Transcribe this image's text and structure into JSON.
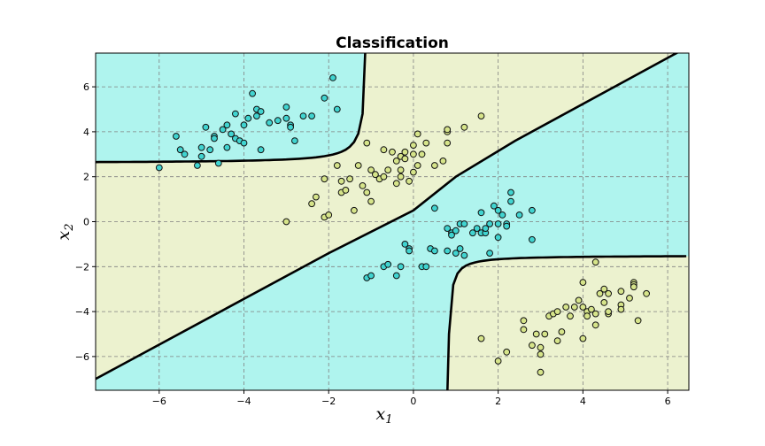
{
  "chart_data": {
    "type": "scatter",
    "title": "Classification",
    "xlabel": "x",
    "xlabel_sub": "1",
    "ylabel": "x",
    "ylabel_sub": "2",
    "xlim": [
      -7.5,
      6.5
    ],
    "ylim": [
      -7.5,
      7.5
    ],
    "xticks": [
      -6,
      -4,
      -2,
      0,
      2,
      4,
      6
    ],
    "yticks": [
      -6,
      -4,
      -2,
      0,
      2,
      4,
      6
    ],
    "grid": true,
    "colors": {
      "region_cyan": "#aff4ee",
      "region_yellow": "#ecf2cf",
      "point_cyan": "#40d4d0",
      "point_yellow": "#d6e48a",
      "edge": "#111111",
      "boundary": "#000000"
    },
    "series": [
      {
        "class": "cyan",
        "points": [
          [
            -6.0,
            2.4
          ],
          [
            -5.6,
            3.8
          ],
          [
            -5.5,
            3.2
          ],
          [
            -5.4,
            3.0
          ],
          [
            -5.1,
            2.5
          ],
          [
            -5.0,
            3.3
          ],
          [
            -5.0,
            2.9
          ],
          [
            -4.9,
            4.2
          ],
          [
            -4.8,
            3.2
          ],
          [
            -4.7,
            3.8
          ],
          [
            -4.7,
            3.7
          ],
          [
            -4.6,
            2.6
          ],
          [
            -4.5,
            4.1
          ],
          [
            -4.4,
            3.3
          ],
          [
            -4.4,
            4.3
          ],
          [
            -4.3,
            3.9
          ],
          [
            -4.2,
            4.8
          ],
          [
            -4.2,
            3.7
          ],
          [
            -4.1,
            3.6
          ],
          [
            -4.0,
            3.5
          ],
          [
            -4.0,
            4.3
          ],
          [
            -3.9,
            4.6
          ],
          [
            -3.8,
            5.7
          ],
          [
            -3.7,
            5.0
          ],
          [
            -3.7,
            4.7
          ],
          [
            -3.6,
            4.9
          ],
          [
            -3.6,
            3.2
          ],
          [
            -3.4,
            4.4
          ],
          [
            -3.2,
            4.5
          ],
          [
            -3.0,
            5.1
          ],
          [
            -3.0,
            4.6
          ],
          [
            -2.9,
            4.3
          ],
          [
            -2.9,
            4.2
          ],
          [
            -2.8,
            3.6
          ],
          [
            -2.6,
            4.7
          ],
          [
            -2.4,
            4.7
          ],
          [
            -2.1,
            5.5
          ],
          [
            -1.9,
            6.4
          ],
          [
            -1.8,
            5.0
          ],
          [
            -1.1,
            -2.5
          ],
          [
            -1.0,
            -2.4
          ],
          [
            -0.7,
            -2.0
          ],
          [
            -0.6,
            -1.9
          ],
          [
            -0.4,
            -2.4
          ],
          [
            -0.3,
            -2.0
          ],
          [
            -0.2,
            -1.0
          ],
          [
            -0.1,
            -1.2
          ],
          [
            -0.1,
            -1.3
          ],
          [
            0.2,
            -2.0
          ],
          [
            0.3,
            -2.0
          ],
          [
            0.4,
            -1.2
          ],
          [
            0.5,
            -1.3
          ],
          [
            0.5,
            0.6
          ],
          [
            0.8,
            -0.3
          ],
          [
            0.8,
            -1.3
          ],
          [
            0.9,
            -0.5
          ],
          [
            0.9,
            -0.6
          ],
          [
            1.0,
            -0.4
          ],
          [
            1.0,
            -1.4
          ],
          [
            1.1,
            -1.2
          ],
          [
            1.1,
            -0.1
          ],
          [
            1.2,
            -0.1
          ],
          [
            1.2,
            -1.5
          ],
          [
            1.4,
            -0.5
          ],
          [
            1.5,
            -0.3
          ],
          [
            1.6,
            0.4
          ],
          [
            1.6,
            -0.5
          ],
          [
            1.7,
            -0.5
          ],
          [
            1.7,
            -0.3
          ],
          [
            1.8,
            -1.4
          ],
          [
            1.8,
            -0.1
          ],
          [
            1.9,
            0.7
          ],
          [
            2.0,
            0.5
          ],
          [
            2.0,
            -0.7
          ],
          [
            2.0,
            -0.1
          ],
          [
            2.1,
            0.3
          ],
          [
            2.2,
            -0.1
          ],
          [
            2.2,
            -0.2
          ],
          [
            2.3,
            0.9
          ],
          [
            2.3,
            1.3
          ],
          [
            2.5,
            0.3
          ],
          [
            2.8,
            0.5
          ],
          [
            2.8,
            -0.8
          ]
        ]
      },
      {
        "class": "yellow",
        "points": [
          [
            -3.0,
            0.0
          ],
          [
            -2.4,
            0.8
          ],
          [
            -2.3,
            1.1
          ],
          [
            -2.1,
            0.2
          ],
          [
            -2.1,
            1.9
          ],
          [
            -2.0,
            0.3
          ],
          [
            -1.8,
            2.5
          ],
          [
            -1.7,
            1.8
          ],
          [
            -1.7,
            1.3
          ],
          [
            -1.6,
            1.4
          ],
          [
            -1.5,
            1.9
          ],
          [
            -1.4,
            0.5
          ],
          [
            -1.3,
            2.5
          ],
          [
            -1.2,
            1.6
          ],
          [
            -1.1,
            1.3
          ],
          [
            -1.1,
            3.5
          ],
          [
            -1.0,
            0.9
          ],
          [
            -1.0,
            2.3
          ],
          [
            -0.9,
            2.1
          ],
          [
            -0.8,
            1.9
          ],
          [
            -0.7,
            2.0
          ],
          [
            -0.7,
            3.2
          ],
          [
            -0.6,
            2.3
          ],
          [
            -0.5,
            3.1
          ],
          [
            -0.4,
            2.7
          ],
          [
            -0.4,
            1.7
          ],
          [
            -0.3,
            2.9
          ],
          [
            -0.3,
            2.3
          ],
          [
            -0.3,
            2.0
          ],
          [
            -0.2,
            2.8
          ],
          [
            -0.2,
            3.1
          ],
          [
            -0.1,
            1.8
          ],
          [
            0.0,
            2.2
          ],
          [
            0.0,
            3.0
          ],
          [
            0.0,
            3.4
          ],
          [
            0.1,
            2.5
          ],
          [
            0.1,
            3.9
          ],
          [
            0.2,
            3.0
          ],
          [
            0.3,
            3.5
          ],
          [
            0.5,
            2.5
          ],
          [
            0.7,
            2.7
          ],
          [
            0.8,
            3.5
          ],
          [
            0.8,
            4.0
          ],
          [
            0.8,
            4.1
          ],
          [
            1.2,
            4.2
          ],
          [
            1.6,
            4.7
          ],
          [
            1.6,
            -5.2
          ],
          [
            2.0,
            -6.2
          ],
          [
            2.2,
            -5.8
          ],
          [
            2.6,
            -4.4
          ],
          [
            2.6,
            -4.8
          ],
          [
            2.8,
            -5.5
          ],
          [
            2.9,
            -5.0
          ],
          [
            3.0,
            -5.6
          ],
          [
            3.0,
            -5.9
          ],
          [
            3.0,
            -6.7
          ],
          [
            3.1,
            -5.0
          ],
          [
            3.2,
            -4.2
          ],
          [
            3.3,
            -4.1
          ],
          [
            3.4,
            -5.3
          ],
          [
            3.4,
            -4.0
          ],
          [
            3.5,
            -4.9
          ],
          [
            3.6,
            -3.8
          ],
          [
            3.7,
            -4.2
          ],
          [
            3.8,
            -3.8
          ],
          [
            3.9,
            -3.5
          ],
          [
            4.0,
            -2.7
          ],
          [
            4.0,
            -3.8
          ],
          [
            4.0,
            -5.2
          ],
          [
            4.1,
            -4.0
          ],
          [
            4.1,
            -4.2
          ],
          [
            4.2,
            -3.9
          ],
          [
            4.3,
            -4.6
          ],
          [
            4.3,
            -4.1
          ],
          [
            4.3,
            -1.8
          ],
          [
            4.4,
            -3.2
          ],
          [
            4.5,
            -3.0
          ],
          [
            4.5,
            -3.6
          ],
          [
            4.6,
            -4.1
          ],
          [
            4.6,
            -3.2
          ],
          [
            4.6,
            -4.0
          ],
          [
            4.9,
            -3.7
          ],
          [
            4.9,
            -3.1
          ],
          [
            4.9,
            -3.9
          ],
          [
            5.1,
            -3.4
          ],
          [
            5.2,
            -2.7
          ],
          [
            5.2,
            -2.8
          ],
          [
            5.2,
            -2.9
          ],
          [
            5.3,
            -4.4
          ],
          [
            5.5,
            -3.2
          ]
        ]
      }
    ]
  }
}
